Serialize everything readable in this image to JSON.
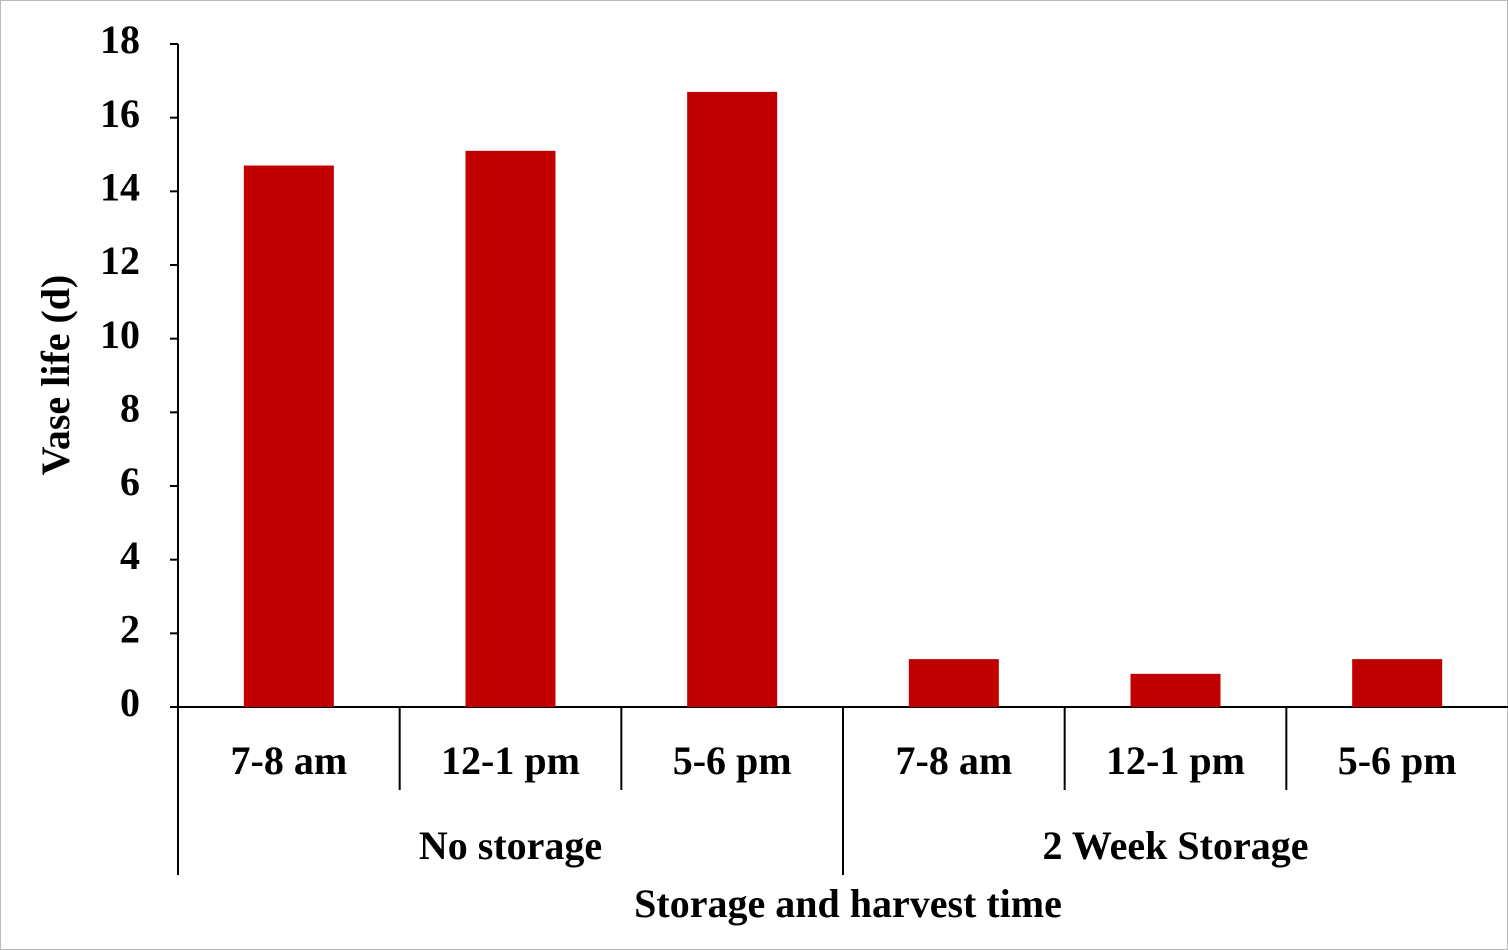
{
  "chart_data": {
    "type": "bar",
    "x_label": "Storage and harvest time",
    "y_label": "Vase life (d)",
    "color": "#c00000",
    "groups": [
      {
        "name": "No storage",
        "categories": [
          "7-8 am",
          "12-1 pm",
          "5-6 pm"
        ],
        "values": [
          14.7,
          15.1,
          16.7
        ]
      },
      {
        "name": "2 Week Storage",
        "categories": [
          "7-8 am",
          "12-1 pm",
          "5-6 pm"
        ],
        "values": [
          1.3,
          0.9,
          1.3
        ]
      }
    ],
    "ylim": [
      0,
      18
    ],
    "yticks": [
      0,
      2,
      4,
      6,
      8,
      10,
      12,
      14,
      16,
      18
    ]
  }
}
